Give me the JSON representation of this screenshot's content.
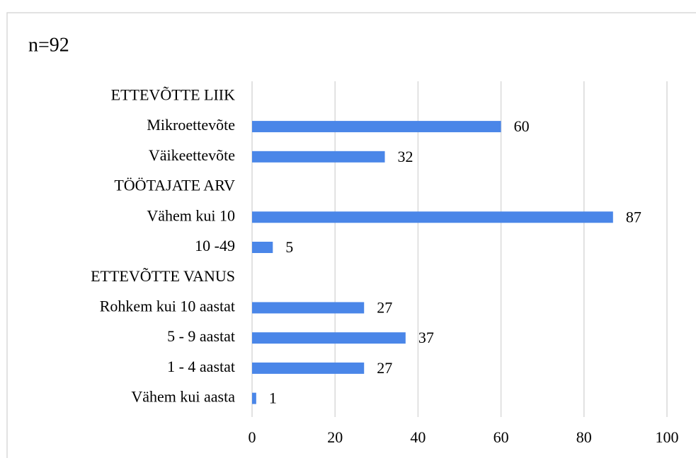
{
  "chart_data": {
    "type": "barh",
    "title": "n=92",
    "categories": [
      "ETTEVÕTTE LIIK",
      "Mikroettevõte",
      "Väikeettevõte",
      "TÖÖTAJATE ARV",
      "Vähem kui 10",
      "10 -49",
      "ETTEVÕTTE VANUS",
      "Rohkem kui 10 aastat",
      "5 - 9 aastat",
      "1 - 4 aastat",
      "Vähem kui aasta"
    ],
    "values": [
      null,
      60,
      32,
      null,
      87,
      5,
      null,
      27,
      37,
      27,
      1
    ],
    "color": "#4a86e8",
    "xlim": [
      0,
      100
    ],
    "xticks": [
      0,
      20,
      40,
      60,
      80,
      100
    ],
    "grid": true
  }
}
